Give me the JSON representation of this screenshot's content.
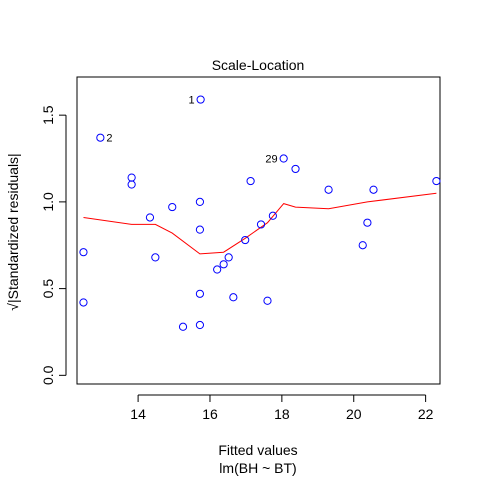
{
  "chart_data": {
    "type": "scatter",
    "title": "Scale-Location",
    "xlabel": "Fitted values",
    "sublabel": "lm(BH ~ BT)",
    "ylabel": "√|Standardized residuals|",
    "xlim": [
      12.3,
      22.4
    ],
    "ylim": [
      -0.05,
      1.72
    ],
    "xticks": [
      14,
      16,
      18,
      20,
      22
    ],
    "yticks": [
      0.0,
      0.5,
      1.0,
      1.5
    ],
    "xtick_labels": [
      "14",
      "16",
      "18",
      "20",
      "22"
    ],
    "ytick_labels": [
      "0.0",
      "0.5",
      "1.0",
      "1.5"
    ],
    "point_color": "#0000ff",
    "smooth_color": "#ff0000",
    "points": [
      {
        "x": 12.48,
        "y": 0.71
      },
      {
        "x": 12.48,
        "y": 0.42
      },
      {
        "x": 12.95,
        "y": 1.37,
        "label": "2"
      },
      {
        "x": 13.82,
        "y": 1.14
      },
      {
        "x": 13.82,
        "y": 1.1
      },
      {
        "x": 14.33,
        "y": 0.91
      },
      {
        "x": 14.48,
        "y": 0.68
      },
      {
        "x": 14.95,
        "y": 0.97
      },
      {
        "x": 15.25,
        "y": 0.28
      },
      {
        "x": 15.74,
        "y": 1.59,
        "label": "1"
      },
      {
        "x": 15.72,
        "y": 1.0
      },
      {
        "x": 15.72,
        "y": 0.84
      },
      {
        "x": 15.72,
        "y": 0.47
      },
      {
        "x": 15.72,
        "y": 0.29
      },
      {
        "x": 16.2,
        "y": 0.61
      },
      {
        "x": 16.38,
        "y": 0.64
      },
      {
        "x": 16.52,
        "y": 0.68
      },
      {
        "x": 16.65,
        "y": 0.45
      },
      {
        "x": 16.98,
        "y": 0.78
      },
      {
        "x": 17.13,
        "y": 1.12
      },
      {
        "x": 17.42,
        "y": 0.87
      },
      {
        "x": 17.6,
        "y": 0.43
      },
      {
        "x": 17.75,
        "y": 0.92
      },
      {
        "x": 18.05,
        "y": 1.25,
        "label": "29"
      },
      {
        "x": 18.38,
        "y": 1.19
      },
      {
        "x": 19.3,
        "y": 1.07
      },
      {
        "x": 20.25,
        "y": 0.75
      },
      {
        "x": 20.38,
        "y": 0.88
      },
      {
        "x": 20.55,
        "y": 1.07
      },
      {
        "x": 22.3,
        "y": 1.12
      }
    ],
    "smooth_line": [
      {
        "x": 12.48,
        "y": 0.91
      },
      {
        "x": 13.82,
        "y": 0.87
      },
      {
        "x": 14.48,
        "y": 0.87
      },
      {
        "x": 14.95,
        "y": 0.82
      },
      {
        "x": 15.72,
        "y": 0.7
      },
      {
        "x": 16.38,
        "y": 0.71
      },
      {
        "x": 16.98,
        "y": 0.79
      },
      {
        "x": 17.6,
        "y": 0.88
      },
      {
        "x": 18.05,
        "y": 0.99
      },
      {
        "x": 18.38,
        "y": 0.97
      },
      {
        "x": 19.3,
        "y": 0.96
      },
      {
        "x": 20.38,
        "y": 1.0
      },
      {
        "x": 22.3,
        "y": 1.05
      }
    ]
  }
}
